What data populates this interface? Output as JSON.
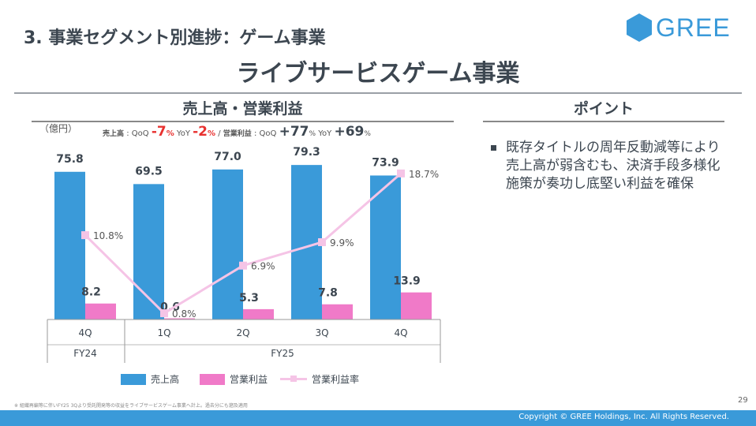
{
  "header": {
    "section_title": "3. 事業セグメント別進捗：ゲーム事業",
    "main_title": "ライブサービスゲーム事業",
    "logo": "GREE"
  },
  "chart_panel": {
    "title": "売上高・営業利益",
    "unit": "（億円）",
    "growth": {
      "rev_label": "売上高",
      "qoq": "QoQ",
      "yoy": "YoY",
      "rev_qoq": "-7",
      "rev_yoy": "-2",
      "pct": "%",
      "sep": "/",
      "op_label": "営業利益",
      "op_qoq": "+77",
      "op_yoy": "+69"
    }
  },
  "chart_data": {
    "type": "bar+line",
    "title": "売上高・営業利益",
    "ylabel": "（億円）",
    "categories": [
      "4Q",
      "1Q",
      "2Q",
      "3Q",
      "4Q"
    ],
    "fiscal_groups": [
      {
        "label": "FY24",
        "quarters": 1
      },
      {
        "label": "FY25",
        "quarters": 4
      }
    ],
    "series": [
      {
        "name": "売上高",
        "type": "bar",
        "color": "#3a9ad9",
        "values": [
          75.8,
          69.5,
          77.0,
          79.3,
          73.9
        ],
        "labels": [
          "75.8",
          "69.5",
          "77.0",
          "79.3",
          "73.9"
        ]
      },
      {
        "name": "営業利益",
        "type": "bar",
        "color": "#f07ac8",
        "values": [
          8.2,
          0.6,
          5.3,
          7.8,
          13.9
        ],
        "labels": [
          "8.2",
          "0.6",
          "5.3",
          "7.8",
          "13.9"
        ]
      },
      {
        "name": "営業利益率",
        "type": "line",
        "color": "#f5c4e6",
        "values": [
          10.8,
          0.8,
          6.9,
          9.9,
          18.7
        ],
        "labels": [
          "10.8%",
          "0.8%",
          "6.9%",
          "9.9%",
          "18.7%"
        ]
      }
    ]
  },
  "point_panel": {
    "title": "ポイント",
    "bullets": [
      "既存タイトルの周年反動減等により売上高が弱含むも、決済手段多様化施策が奏功し底堅い利益を確保"
    ]
  },
  "footer": {
    "footnote": "※ 組織再編等に伴いFY25 3Qより受託開発等の収益をライブサービスゲーム事業へ計上。過去分にも遡及適用",
    "page": "29",
    "copyright": "Copyright © GREE Holdings, Inc. All Rights Reserved."
  }
}
